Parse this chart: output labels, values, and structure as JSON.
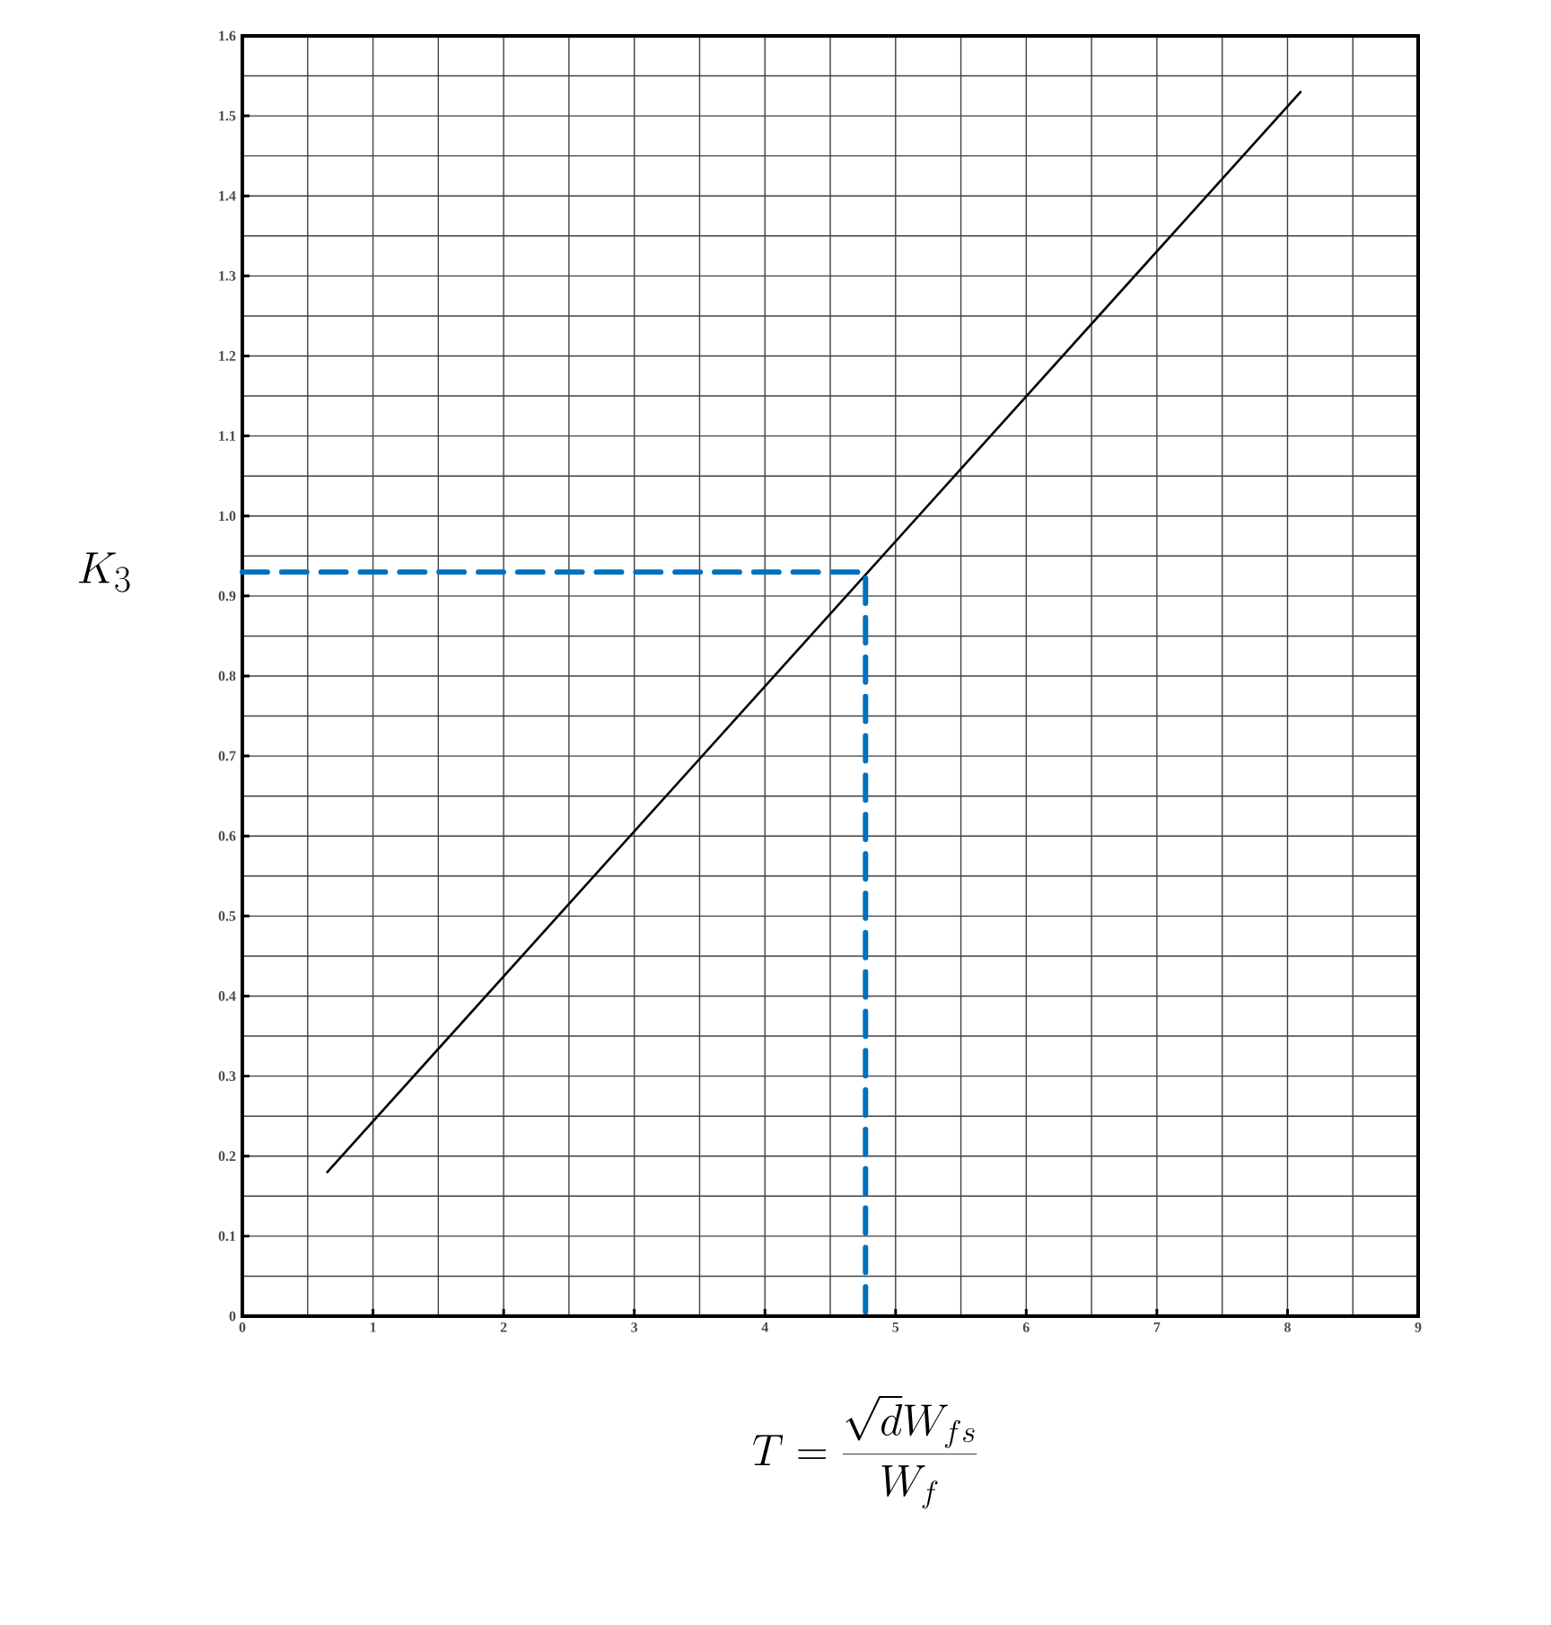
{
  "chart_data": {
    "type": "line",
    "xlabel": "T=\\frac{\\sqrt{d}W_{fs}}{W_f}",
    "ylabel": "K_3",
    "xlim": [
      0,
      9
    ],
    "ylim": [
      0,
      1.6
    ],
    "xticks": [
      0,
      1,
      2,
      3,
      4,
      5,
      6,
      7,
      8,
      9
    ],
    "yticks": [
      0,
      0.1,
      0.2,
      0.3,
      0.4,
      0.5,
      0.6,
      0.7,
      0.8,
      0.9,
      {
        "value": 1,
        "label": "1.0"
      },
      1.1,
      1.2,
      1.3,
      1.4,
      1.5,
      1.6
    ],
    "grid": true,
    "marker": "none",
    "series": [
      {
        "color": "#000000",
        "line_style": "solid",
        "x": [
          0.65,
          8.1
        ],
        "values": [
          0.18,
          1.53
        ]
      },
      {
        "color": "#0070c0",
        "line_style": "dashed",
        "x": [
          0,
          4.77,
          4.77
        ],
        "values": [
          0.93,
          0.93,
          0
        ]
      }
    ]
  }
}
